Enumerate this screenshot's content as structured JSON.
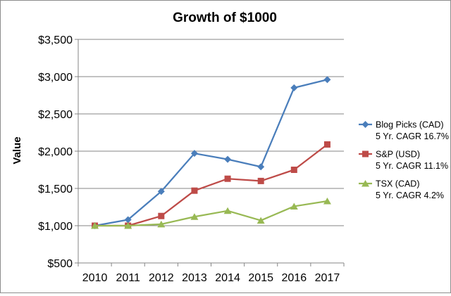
{
  "chart_data": {
    "type": "line",
    "title": "Growth of $1000",
    "xlabel": "",
    "ylabel": "Value",
    "categories": [
      "2010",
      "2011",
      "2012",
      "2013",
      "2014",
      "2015",
      "2016",
      "2017"
    ],
    "ylim": [
      500,
      3500
    ],
    "ytick_step": 500,
    "ytick_labels": [
      "$500",
      "$1,000",
      "$1,500",
      "$2,000",
      "$2,500",
      "$3,000",
      "$3,500"
    ],
    "grid": true,
    "legend_position": "right",
    "series": [
      {
        "name": "Blog Picks (CAD)",
        "subtitle": "5 Yr. CAGR 16.7%",
        "color": "#4a7ebb",
        "marker": "diamond",
        "values": [
          1000,
          1080,
          1460,
          1970,
          1890,
          1790,
          2850,
          2960
        ]
      },
      {
        "name": "S&P (USD)",
        "subtitle": "5 Yr. CAGR 11.1%",
        "color": "#be4b48",
        "marker": "square",
        "values": [
          1000,
          1000,
          1130,
          1470,
          1630,
          1600,
          1750,
          2090
        ]
      },
      {
        "name": "TSX (CAD)",
        "subtitle": "5 Yr. CAGR 4.2%",
        "color": "#98b954",
        "marker": "triangle",
        "values": [
          1000,
          1000,
          1020,
          1120,
          1200,
          1070,
          1260,
          1330
        ]
      }
    ]
  }
}
